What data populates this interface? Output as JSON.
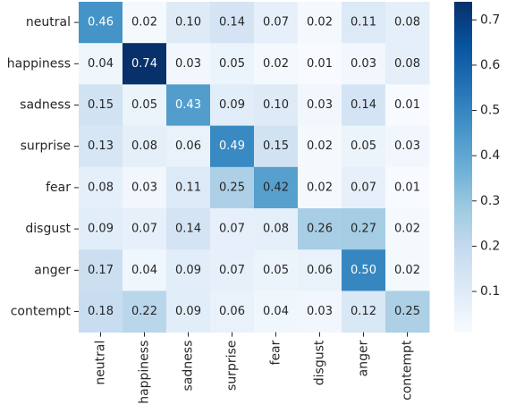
{
  "chart_data": {
    "type": "heatmap",
    "title": "",
    "xlabel": "",
    "ylabel": "",
    "rows": [
      "neutral",
      "happiness",
      "sadness",
      "surprise",
      "fear",
      "disgust",
      "anger",
      "contempt"
    ],
    "columns": [
      "neutral",
      "happiness",
      "sadness",
      "surprise",
      "fear",
      "disgust",
      "anger",
      "contempt"
    ],
    "values": [
      [
        0.46,
        0.02,
        0.1,
        0.14,
        0.07,
        0.02,
        0.11,
        0.08
      ],
      [
        0.04,
        0.74,
        0.03,
        0.05,
        0.02,
        0.01,
        0.03,
        0.08
      ],
      [
        0.15,
        0.05,
        0.43,
        0.09,
        0.1,
        0.03,
        0.14,
        0.01
      ],
      [
        0.13,
        0.08,
        0.06,
        0.49,
        0.15,
        0.02,
        0.05,
        0.03
      ],
      [
        0.08,
        0.03,
        0.11,
        0.25,
        0.42,
        0.02,
        0.07,
        0.01
      ],
      [
        0.09,
        0.07,
        0.14,
        0.07,
        0.08,
        0.26,
        0.27,
        0.02
      ],
      [
        0.17,
        0.04,
        0.09,
        0.07,
        0.05,
        0.06,
        0.5,
        0.02
      ],
      [
        0.18,
        0.22,
        0.09,
        0.06,
        0.04,
        0.03,
        0.12,
        0.25
      ]
    ],
    "value_labels": [
      [
        "0.46",
        "0.02",
        "0.10",
        "0.14",
        "0.07",
        "0.02",
        "0.11",
        "0.08"
      ],
      [
        "0.04",
        "0.74",
        "0.03",
        "0.05",
        "0.02",
        "0.01",
        "0.03",
        "0.08"
      ],
      [
        "0.15",
        "0.05",
        "0.43",
        "0.09",
        "0.10",
        "0.03",
        "0.14",
        "0.01"
      ],
      [
        "0.13",
        "0.08",
        "0.06",
        "0.49",
        "0.15",
        "0.02",
        "0.05",
        "0.03"
      ],
      [
        "0.08",
        "0.03",
        "0.11",
        "0.25",
        "0.42",
        "0.02",
        "0.07",
        "0.01"
      ],
      [
        "0.09",
        "0.07",
        "0.14",
        "0.07",
        "0.08",
        "0.26",
        "0.27",
        "0.02"
      ],
      [
        "0.17",
        "0.04",
        "0.09",
        "0.07",
        "0.05",
        "0.06",
        "0.50",
        "0.02"
      ],
      [
        "0.18",
        "0.22",
        "0.09",
        "0.06",
        "0.04",
        "0.03",
        "0.12",
        "0.25"
      ]
    ],
    "colormap": "Blues",
    "color_range": [
      0.01,
      0.74
    ],
    "colorbar_ticks": [
      0.1,
      0.2,
      0.3,
      0.4,
      0.5,
      0.6,
      0.7
    ],
    "colorbar_tick_labels": [
      "0.1",
      "0.2",
      "0.3",
      "0.4",
      "0.5",
      "0.6",
      "0.7"
    ],
    "grid": false
  }
}
